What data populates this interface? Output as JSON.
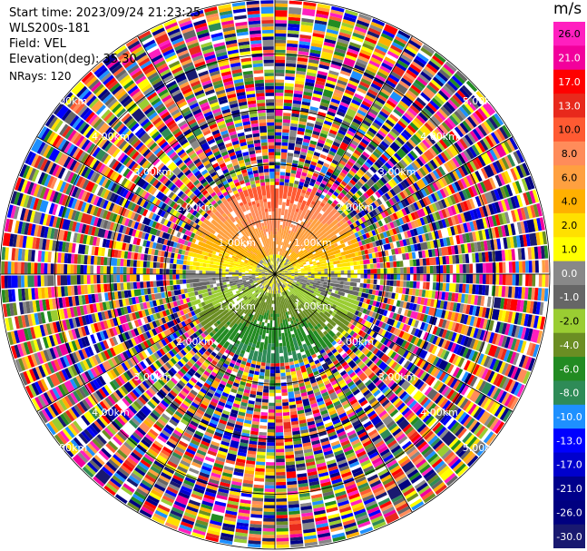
{
  "info": {
    "start_time": "Start time: 2023/09/24 21:23:25",
    "station": "WLS200s-181",
    "field": "Field: VEL",
    "elevation": "Elevation(deg): 35.30",
    "nrays": "NRays: 120"
  },
  "colorbar": {
    "unit": "m/s",
    "ticks": [
      "26.0",
      "21.0",
      "17.0",
      "13.0",
      "10.0",
      "8.0",
      "6.0",
      "4.0",
      "2.0",
      "1.0",
      "0.0",
      "-1.0",
      "-2.0",
      "-4.0",
      "-6.0",
      "-8.0",
      "-10.0",
      "-13.0",
      "-17.0",
      "-21.0",
      "-26.0",
      "-30.0"
    ],
    "colors": [
      "#ff1fbf",
      "#f2009c",
      "#ff0000",
      "#e8291c",
      "#ff5a32",
      "#ff8c5a",
      "#ffa040",
      "#ffb000",
      "#ffe000",
      "#ffff00",
      "#888888",
      "#666666",
      "#9acd32",
      "#6b8e23",
      "#228b22",
      "#2e8b57",
      "#1e90ff",
      "#0000ff",
      "#0000cd",
      "#00008b",
      "#000080",
      "#191970"
    ]
  },
  "chart_data": {
    "type": "ppi",
    "field": "VEL",
    "unit": "m/s",
    "nrays": 120,
    "range_rings_km": [
      1.0,
      2.0,
      3.0,
      4.0,
      5.0
    ],
    "ring_labels": [
      "1.00km",
      "2.00km",
      "3.00km",
      "4.00km",
      "5.00km"
    ],
    "radial_lines": 12,
    "color_scale": {
      "ticks": [
        26.0,
        21.0,
        17.0,
        13.0,
        10.0,
        8.0,
        6.0,
        4.0,
        2.0,
        1.0,
        0.0,
        -1.0,
        -2.0,
        -4.0,
        -6.0,
        -8.0,
        -10.0,
        -13.0,
        -17.0,
        -21.0,
        -26.0,
        -30.0
      ]
    },
    "max_range_km": 5.0
  }
}
